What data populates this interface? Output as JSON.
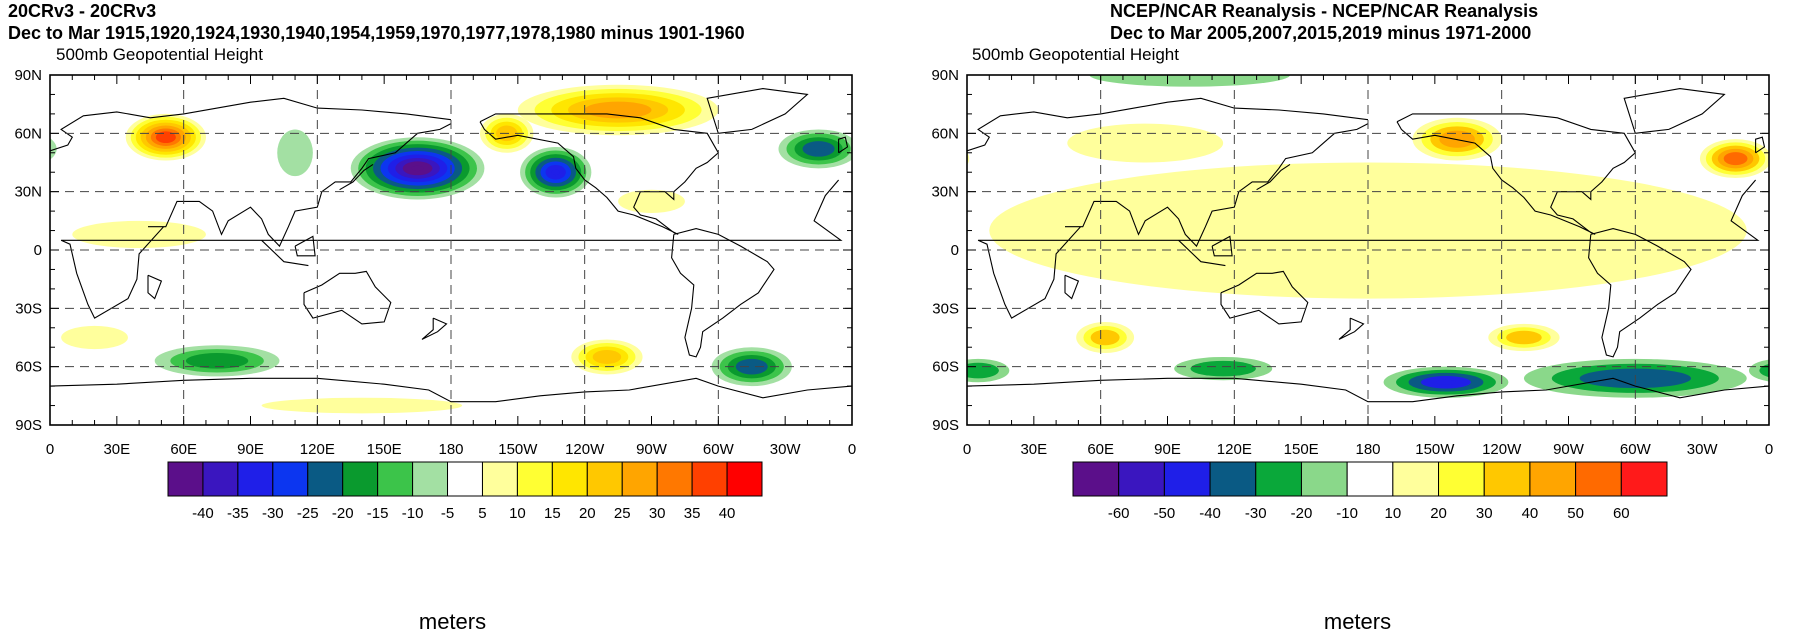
{
  "panels": [
    {
      "title_line1": "20CRv3 - 20CRv3",
      "title_line2": "Dec to Mar 1915,1920,1924,1930,1940,1954,1959,1970,1977,1978,1980 minus 1901-1960",
      "subtitle": "500mb Geopotential Height",
      "y_ticks": [
        "90N",
        "60N",
        "30N",
        "0",
        "30S",
        "60S",
        "90S"
      ],
      "x_ticks": [
        "0",
        "30E",
        "60E",
        "90E",
        "120E",
        "150E",
        "180",
        "150W",
        "120W",
        "90W",
        "60W",
        "30W",
        "0"
      ],
      "colorbar": {
        "colors": [
          "#5b0f8a",
          "#3a16bf",
          "#1f1fe8",
          "#0c36f0",
          "#0a5a84",
          "#0a9a2e",
          "#3cc44a",
          "#a3e0a3",
          "#ffffff",
          "#ffff9c",
          "#ffff33",
          "#ffe600",
          "#ffc800",
          "#ffa500",
          "#ff7800",
          "#ff4000",
          "#ff0000"
        ],
        "labels": [
          "-40",
          "-35",
          "-30",
          "-25",
          "-20",
          "-15",
          "-10",
          "-5",
          "5",
          "10",
          "15",
          "20",
          "25",
          "30",
          "35",
          "40"
        ]
      },
      "units": "meters",
      "anomalies": [
        {
          "lon": 52,
          "lat": 58,
          "rx": 18,
          "ry": 12,
          "value": 36
        },
        {
          "lon": 165,
          "lat": 42,
          "rx": 30,
          "ry": 16,
          "value": -40
        },
        {
          "lon": 227,
          "lat": 40,
          "rx": 16,
          "ry": 13,
          "value": -30
        },
        {
          "lon": 345,
          "lat": 52,
          "rx": 18,
          "ry": 10,
          "value": -22
        },
        {
          "lon": 255,
          "lat": 72,
          "rx": 45,
          "ry": 13,
          "value": 28
        },
        {
          "lon": 205,
          "lat": 60,
          "rx": 12,
          "ry": 10,
          "value": 22
        },
        {
          "lon": 110,
          "lat": 50,
          "rx": 8,
          "ry": 12,
          "value": -7
        },
        {
          "lon": 40,
          "lat": 8,
          "rx": 30,
          "ry": 7,
          "value": 7
        },
        {
          "lon": 250,
          "lat": -55,
          "rx": 16,
          "ry": 9,
          "value": 24
        },
        {
          "lon": 75,
          "lat": -57,
          "rx": 28,
          "ry": 8,
          "value": -16
        },
        {
          "lon": 315,
          "lat": -60,
          "rx": 18,
          "ry": 10,
          "value": -20
        },
        {
          "lon": 140,
          "lat": -80,
          "rx": 45,
          "ry": 4,
          "value": 6
        },
        {
          "lon": 20,
          "lat": -45,
          "rx": 15,
          "ry": 6,
          "value": 7
        },
        {
          "lon": 270,
          "lat": 25,
          "rx": 15,
          "ry": 6,
          "value": 7
        }
      ]
    },
    {
      "title_line1": "NCEP/NCAR Reanalysis - NCEP/NCAR Reanalysis",
      "title_line2": "Dec to Mar 2005,2007,2015,2019 minus 1971-2000",
      "subtitle": "500mb Geopotential Height",
      "y_ticks": [
        "90N",
        "60N",
        "30N",
        "0",
        "30S",
        "60S",
        "90S"
      ],
      "x_ticks": [
        "0",
        "30E",
        "60E",
        "90E",
        "120E",
        "150E",
        "180",
        "150W",
        "120W",
        "90W",
        "60W",
        "30W",
        "0"
      ],
      "colorbar": {
        "colors": [
          "#5b0f8a",
          "#3a16bf",
          "#1f1fe8",
          "#0a5a84",
          "#0aa83a",
          "#8ad88a",
          "#ffffff",
          "#ffff9c",
          "#ffff33",
          "#ffc800",
          "#ffa500",
          "#ff6a00",
          "#ff1a1a"
        ],
        "labels": [
          "-60",
          "-50",
          "-40",
          "-30",
          "-20",
          "-10",
          "10",
          "20",
          "30",
          "40",
          "50",
          "60"
        ]
      },
      "units": "meters",
      "anomalies": [
        {
          "lon": 180,
          "lat": 10,
          "rx": 170,
          "ry": 35,
          "value": 14
        },
        {
          "lon": 220,
          "lat": 57,
          "rx": 20,
          "ry": 11,
          "value": 42
        },
        {
          "lon": 345,
          "lat": 47,
          "rx": 16,
          "ry": 10,
          "value": 52
        },
        {
          "lon": 80,
          "lat": 55,
          "rx": 35,
          "ry": 10,
          "value": 18
        },
        {
          "lon": 100,
          "lat": 90,
          "rx": 45,
          "ry": 6,
          "value": -14
        },
        {
          "lon": 215,
          "lat": -68,
          "rx": 28,
          "ry": 8,
          "value": -46
        },
        {
          "lon": 300,
          "lat": -66,
          "rx": 50,
          "ry": 10,
          "value": -32
        },
        {
          "lon": 5,
          "lat": -62,
          "rx": 14,
          "ry": 6,
          "value": -24
        },
        {
          "lon": 115,
          "lat": -61,
          "rx": 22,
          "ry": 6,
          "value": -22
        },
        {
          "lon": 62,
          "lat": -45,
          "rx": 13,
          "ry": 8,
          "value": 32
        },
        {
          "lon": 250,
          "lat": -45,
          "rx": 16,
          "ry": 7,
          "value": 32
        },
        {
          "lon": 230,
          "lat": 5,
          "rx": 90,
          "ry": 22,
          "value": 18
        }
      ]
    }
  ]
}
